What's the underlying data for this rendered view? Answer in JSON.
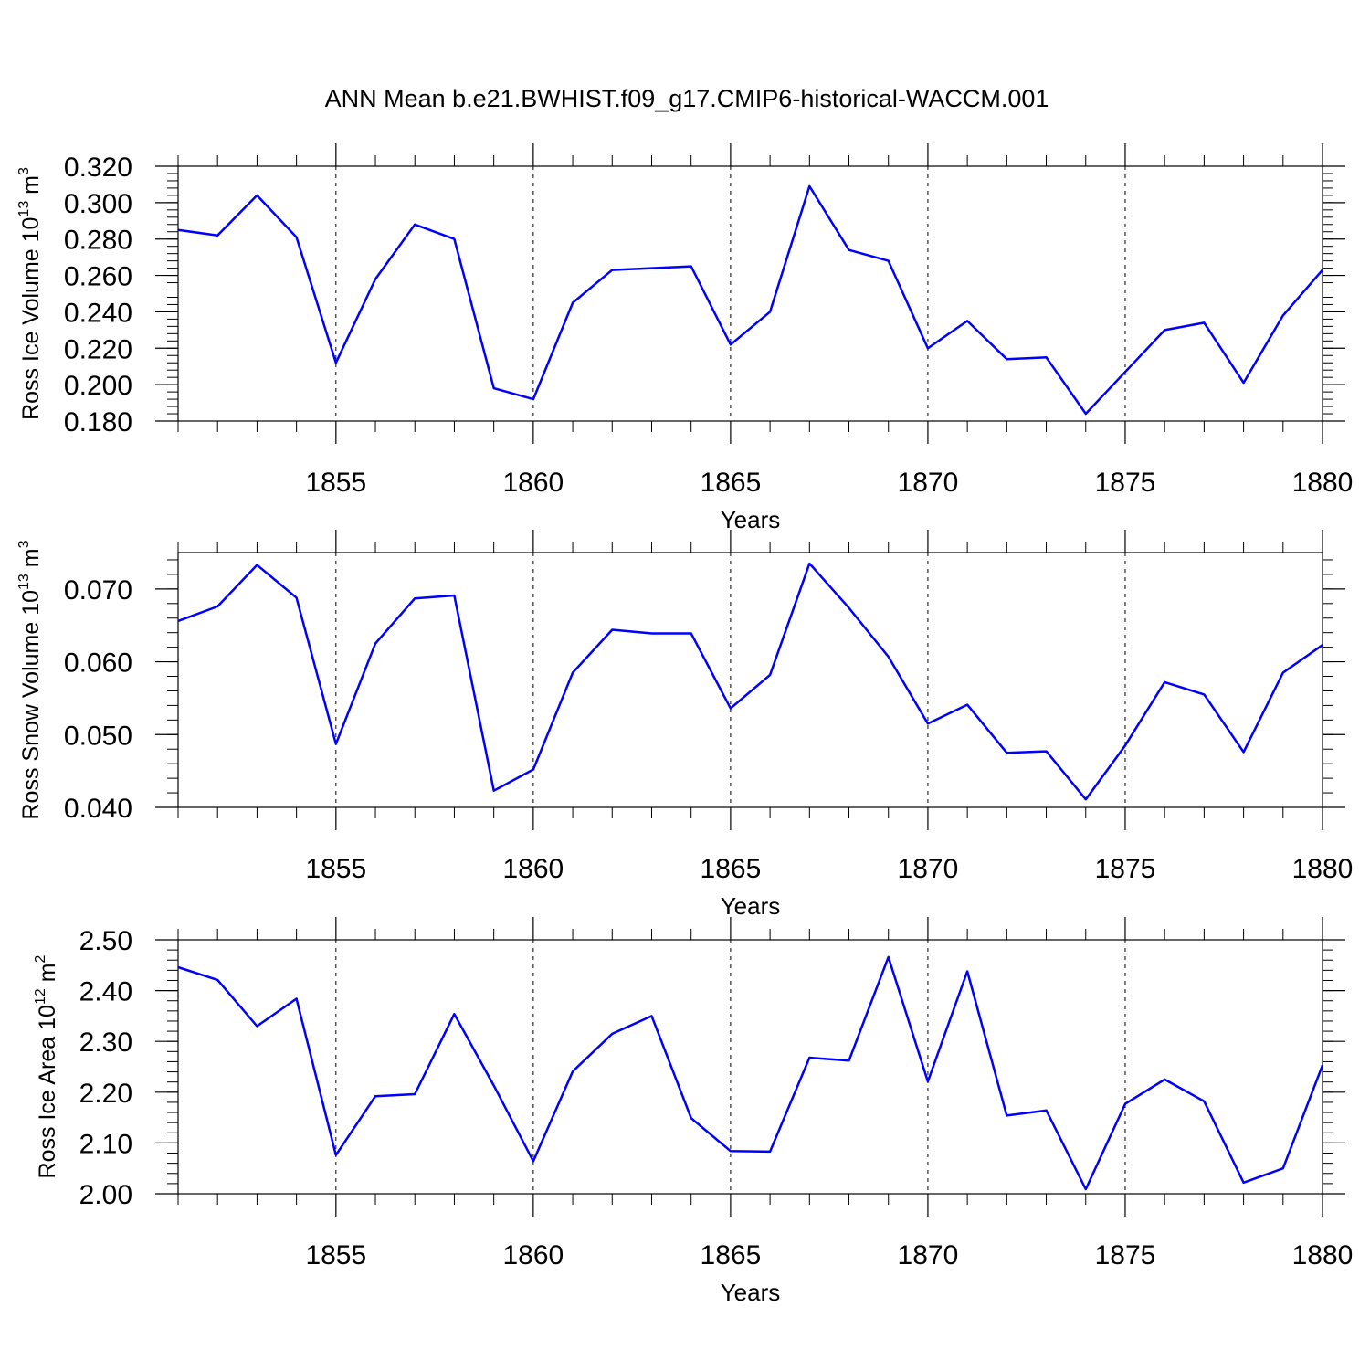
{
  "figure": {
    "title": "ANN Mean b.e21.BWHIST.f09_g17.CMIP6-historical-WACCM.001",
    "line_color": "#0000ff"
  },
  "chart_data": [
    {
      "type": "line",
      "name": "ice-volume",
      "title": "ANN Mean b.e21.BWHIST.f09_g17.CMIP6-historical-WACCM.001",
      "xlabel": "Years",
      "ylabel": {
        "main": "Ross Ice Volume 10",
        "exp": "13",
        "unit": " m",
        "unit_exp": "3"
      },
      "xlim": [
        1851,
        1880
      ],
      "ylim": [
        0.18,
        0.32
      ],
      "xticks": [
        1855,
        1860,
        1865,
        1870,
        1875,
        1880
      ],
      "xtick_labels": [
        "1855",
        "1860",
        "1865",
        "1870",
        "1875",
        "1880"
      ],
      "yticks": [
        0.18,
        0.2,
        0.22,
        0.24,
        0.26,
        0.28,
        0.3,
        0.32
      ],
      "ytick_labels": [
        "0.180",
        "0.200",
        "0.220",
        "0.240",
        "0.260",
        "0.280",
        "0.300",
        "0.320"
      ],
      "grid": "vertical dashed at major x ticks",
      "series": [
        {
          "name": "Ross Ice Volume",
          "x": [
            1851,
            1852,
            1853,
            1854,
            1855,
            1856,
            1857,
            1858,
            1859,
            1860,
            1861,
            1862,
            1863,
            1864,
            1865,
            1866,
            1867,
            1868,
            1869,
            1870,
            1871,
            1872,
            1873,
            1874,
            1875,
            1876,
            1877,
            1878,
            1879,
            1880
          ],
          "y": [
            0.285,
            0.282,
            0.304,
            0.281,
            0.212,
            0.258,
            0.288,
            0.28,
            0.198,
            0.192,
            0.245,
            0.263,
            0.264,
            0.265,
            0.222,
            0.24,
            0.309,
            0.274,
            0.268,
            0.22,
            0.235,
            0.214,
            0.215,
            0.184,
            0.207,
            0.23,
            0.234,
            0.201,
            0.238,
            0.263
          ]
        }
      ]
    },
    {
      "type": "line",
      "name": "snow-volume",
      "xlabel": "Years",
      "ylabel": {
        "main": "Ross Snow Volume 10",
        "exp": "13",
        "unit": " m",
        "unit_exp": "3"
      },
      "xlim": [
        1851,
        1880
      ],
      "ylim": [
        0.04,
        0.075
      ],
      "xticks": [
        1855,
        1860,
        1865,
        1870,
        1875,
        1880
      ],
      "xtick_labels": [
        "1855",
        "1860",
        "1865",
        "1870",
        "1875",
        "1880"
      ],
      "yticks": [
        0.04,
        0.05,
        0.06,
        0.07
      ],
      "ytick_labels": [
        "0.040",
        "0.050",
        "0.060",
        "0.070"
      ],
      "grid": "vertical dashed at major x ticks",
      "series": [
        {
          "name": "Ross Snow Volume",
          "x": [
            1851,
            1852,
            1853,
            1854,
            1855,
            1856,
            1857,
            1858,
            1859,
            1860,
            1861,
            1862,
            1863,
            1864,
            1865,
            1866,
            1867,
            1868,
            1869,
            1870,
            1871,
            1872,
            1873,
            1874,
            1875,
            1876,
            1877,
            1878,
            1879,
            1880
          ],
          "y": [
            0.0656,
            0.0676,
            0.0733,
            0.0688,
            0.0487,
            0.0625,
            0.0687,
            0.0691,
            0.0423,
            0.0452,
            0.0585,
            0.0644,
            0.0639,
            0.0639,
            0.0536,
            0.0582,
            0.0735,
            0.0674,
            0.0607,
            0.0515,
            0.0541,
            0.0475,
            0.0477,
            0.0411,
            0.0485,
            0.0572,
            0.0555,
            0.0476,
            0.0585,
            0.0623
          ]
        }
      ]
    },
    {
      "type": "line",
      "name": "ice-area",
      "xlabel": "Years",
      "ylabel": {
        "main": "Ross Ice Area 10",
        "exp": "12",
        "unit": " m",
        "unit_exp": "2"
      },
      "xlim": [
        1851,
        1880
      ],
      "ylim": [
        2.0,
        2.5
      ],
      "xticks": [
        1855,
        1860,
        1865,
        1870,
        1875,
        1880
      ],
      "xtick_labels": [
        "1855",
        "1860",
        "1865",
        "1870",
        "1875",
        "1880"
      ],
      "yticks": [
        2.0,
        2.1,
        2.2,
        2.3,
        2.4,
        2.5
      ],
      "ytick_labels": [
        "2.00",
        "2.10",
        "2.20",
        "2.30",
        "2.40",
        "2.50"
      ],
      "grid": "vertical dashed at major x ticks",
      "series": [
        {
          "name": "Ross Ice Area",
          "x": [
            1851,
            1852,
            1853,
            1854,
            1855,
            1856,
            1857,
            1858,
            1859,
            1860,
            1861,
            1862,
            1863,
            1864,
            1865,
            1866,
            1867,
            1868,
            1869,
            1870,
            1871,
            1872,
            1873,
            1874,
            1875,
            1876,
            1877,
            1878,
            1879,
            1880
          ],
          "y": [
            2.446,
            2.421,
            2.33,
            2.384,
            2.076,
            2.192,
            2.196,
            2.354,
            2.213,
            2.064,
            2.241,
            2.315,
            2.35,
            2.149,
            2.084,
            2.083,
            2.268,
            2.262,
            2.466,
            2.221,
            2.438,
            2.154,
            2.164,
            2.009,
            2.177,
            2.225,
            2.182,
            2.022,
            2.05,
            2.253
          ]
        }
      ]
    }
  ]
}
